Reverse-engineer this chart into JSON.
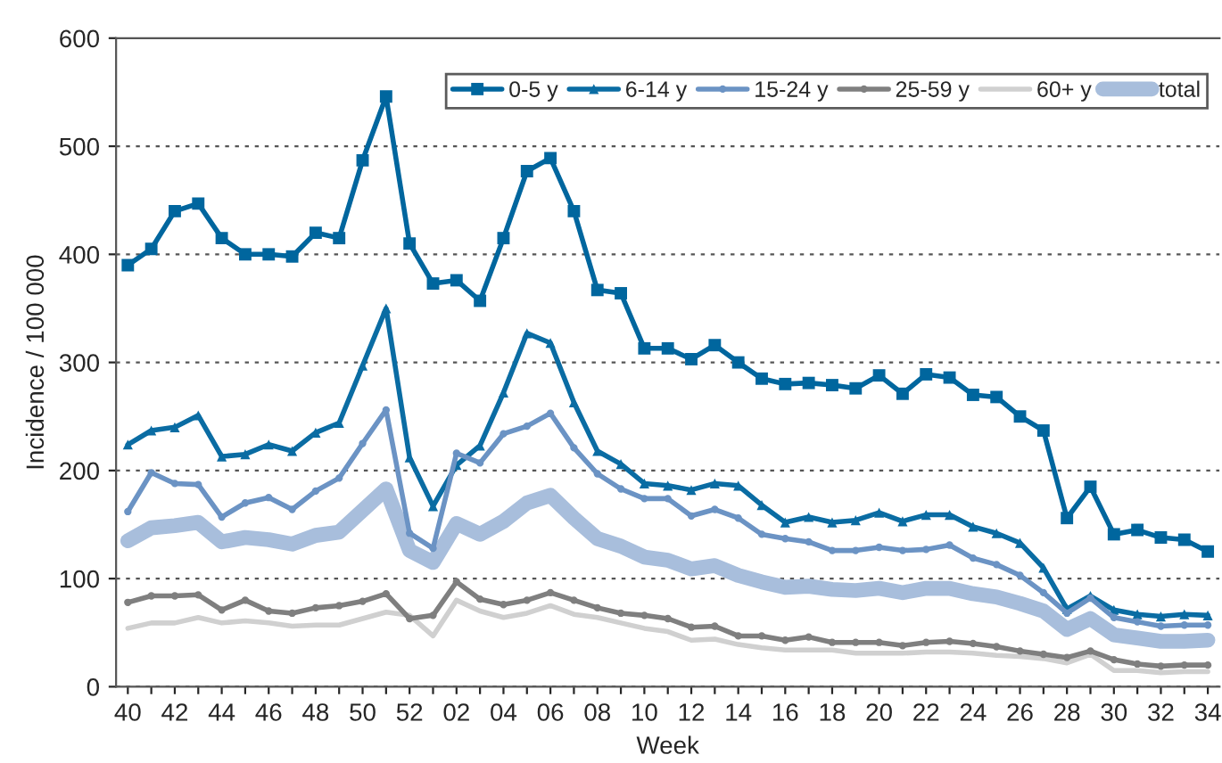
{
  "chart_data": {
    "type": "line",
    "xlabel": "Week",
    "ylabel": "Incidence / 100 000",
    "categories": [
      "40",
      null,
      "42",
      null,
      "44",
      null,
      "46",
      null,
      "48",
      null,
      "50",
      null,
      "52",
      null,
      "02",
      null,
      "04",
      null,
      "06",
      null,
      "08",
      null,
      "10",
      null,
      "12",
      null,
      "14",
      null,
      "16",
      null,
      "18",
      null,
      "20",
      null,
      "22",
      null,
      "24",
      null,
      "26",
      null,
      "28",
      null,
      "30",
      null,
      "32",
      null,
      "34"
    ],
    "ylim": [
      0,
      600
    ],
    "yticks": [
      0,
      100,
      200,
      300,
      400,
      500,
      600
    ],
    "grid": "y",
    "legend": "top right",
    "series": [
      {
        "name": "0-5 y",
        "color": "#00669e",
        "marker": "square",
        "values": [
          390,
          405,
          440,
          447,
          415,
          400,
          400,
          398,
          420,
          415,
          487,
          546,
          410,
          373,
          376,
          357,
          415,
          477,
          489,
          440,
          367,
          364,
          313,
          313,
          303,
          316,
          300,
          285,
          280,
          281,
          279,
          276,
          288,
          271,
          289,
          286,
          270,
          268,
          250,
          237,
          156,
          185,
          141,
          145,
          138,
          136,
          125
        ]
      },
      {
        "name": "6-14 y",
        "color": "#0a6ca3",
        "marker": "triangle",
        "values": [
          224,
          237,
          240,
          251,
          213,
          215,
          224,
          218,
          235,
          244,
          297,
          350,
          212,
          167,
          205,
          223,
          272,
          327,
          318,
          263,
          218,
          206,
          188,
          186,
          182,
          188,
          186,
          168,
          152,
          157,
          152,
          154,
          161,
          153,
          159,
          159,
          148,
          142,
          133,
          110,
          72,
          84,
          71,
          67,
          65,
          67,
          66
        ]
      },
      {
        "name": "15-24 y",
        "color": "#6b93c4",
        "marker": "circle",
        "values": [
          162,
          198,
          188,
          187,
          157,
          170,
          175,
          164,
          181,
          193,
          225,
          256,
          142,
          128,
          216,
          207,
          234,
          241,
          253,
          221,
          197,
          183,
          174,
          174,
          158,
          164,
          156,
          141,
          137,
          134,
          126,
          126,
          129,
          126,
          127,
          131,
          119,
          113,
          103,
          87,
          68,
          82,
          64,
          60,
          56,
          57,
          57
        ]
      },
      {
        "name": "25-59 y",
        "color": "#7f7f7f",
        "marker": "circle",
        "values": [
          78,
          84,
          84,
          85,
          71,
          80,
          70,
          68,
          73,
          75,
          79,
          86,
          63,
          66,
          97,
          81,
          76,
          80,
          87,
          80,
          73,
          68,
          66,
          63,
          55,
          56,
          47,
          47,
          43,
          46,
          41,
          41,
          41,
          38,
          41,
          42,
          40,
          37,
          33,
          30,
          27,
          33,
          25,
          21,
          19,
          20,
          20
        ]
      },
      {
        "name": "60+ y",
        "color": "#d0d0d0",
        "marker": "none",
        "values": [
          54,
          59,
          59,
          64,
          59,
          61,
          59,
          56,
          57,
          57,
          63,
          69,
          66,
          47,
          80,
          70,
          64,
          68,
          75,
          67,
          64,
          59,
          54,
          51,
          43,
          44,
          39,
          36,
          34,
          34,
          34,
          31,
          31,
          31,
          32,
          32,
          31,
          29,
          28,
          26,
          22,
          30,
          15,
          15,
          13,
          14,
          14
        ]
      },
      {
        "name": "total",
        "color": "#a8bedc",
        "marker": "none",
        "values": [
          135,
          147,
          149,
          152,
          134,
          138,
          136,
          132,
          140,
          143,
          163,
          183,
          126,
          115,
          151,
          141,
          153,
          170,
          177,
          156,
          137,
          130,
          120,
          117,
          109,
          112,
          103,
          97,
          92,
          93,
          90,
          89,
          91,
          87,
          91,
          91,
          86,
          83,
          77,
          70,
          53,
          63,
          48,
          45,
          42,
          42,
          43
        ]
      }
    ]
  }
}
